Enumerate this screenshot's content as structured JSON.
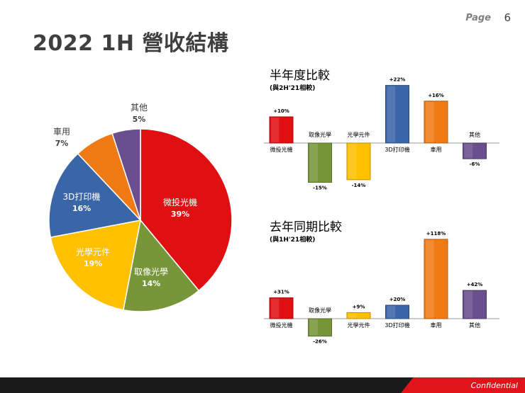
{
  "header": {
    "page_label": "Page",
    "page_number": "6"
  },
  "title": "2022 1H 營收結構",
  "footer": {
    "text": "Confidential"
  },
  "chart_data": [
    {
      "type": "pie",
      "categories": [
        "微投光機",
        "取像光學",
        "光學元件",
        "3D打印機",
        "車用",
        "其他"
      ],
      "values": [
        39,
        14,
        19,
        16,
        7,
        5
      ],
      "labels": [
        "39%",
        "14%",
        "19%",
        "16%",
        "7%",
        "5%"
      ],
      "colors": [
        "#e00f12",
        "#77963a",
        "#ffc000",
        "#3a66a8",
        "#f07a14",
        "#6a4f8e"
      ]
    },
    {
      "type": "bar",
      "title": "半年度比較",
      "subtitle": "(與2H'21相較)",
      "categories": [
        "微投光機",
        "取像光學",
        "光學元件",
        "3D打印機",
        "車用",
        "其他"
      ],
      "values": [
        10,
        -15,
        -14,
        22,
        16,
        -6
      ],
      "labels": [
        "+10%",
        "-15%",
        "-14%",
        "+22%",
        "+16%",
        "-6%"
      ],
      "colors": [
        "#e00f12",
        "#77963a",
        "#ffc000",
        "#3a66a8",
        "#f07a14",
        "#6a4f8e"
      ]
    },
    {
      "type": "bar",
      "title": "去年同期比較",
      "subtitle": "(與1H'21相較)",
      "categories": [
        "微投光機",
        "取像光學",
        "光學元件",
        "3D打印機",
        "車用",
        "其他"
      ],
      "values": [
        31,
        -26,
        9,
        20,
        118,
        42
      ],
      "labels": [
        "+31%",
        "-26%",
        "+9%",
        "+20%",
        "+118%",
        "+42%"
      ],
      "colors": [
        "#e00f12",
        "#77963a",
        "#ffc000",
        "#3a66a8",
        "#f07a14",
        "#6a4f8e"
      ]
    }
  ]
}
